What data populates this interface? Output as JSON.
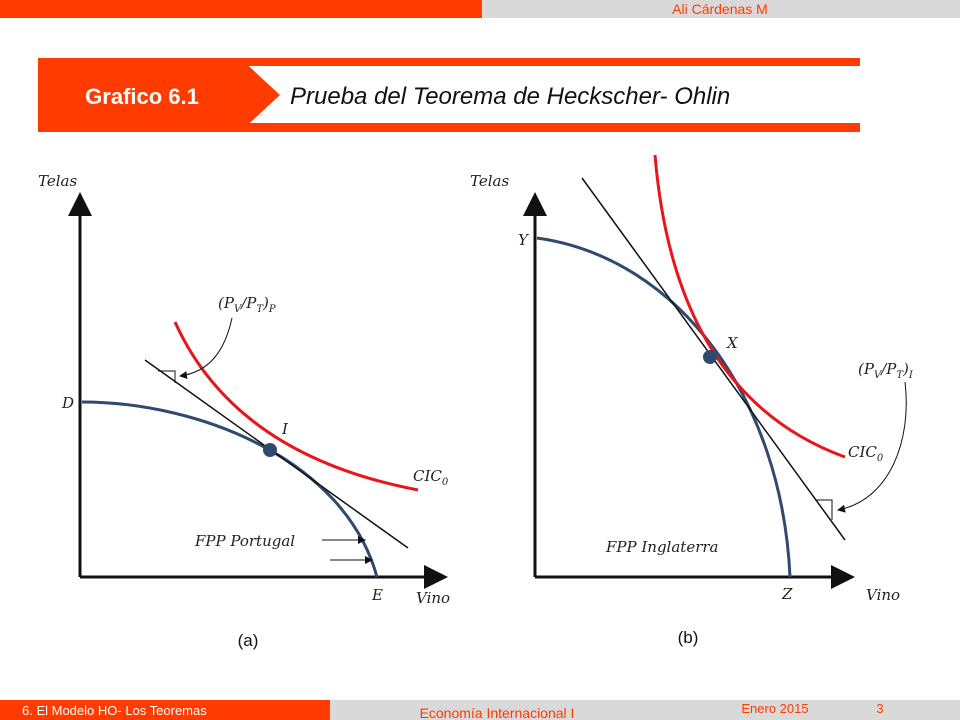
{
  "header": {
    "author": "Ali Cárdenas M",
    "badge": "Grafico 6.1",
    "title": "Prueba del Teorema de Heckscher- Ohlin"
  },
  "panel_a": {
    "y_axis": "Telas",
    "x_axis": "Vino",
    "point_d": "D",
    "point_e": "E",
    "point_i": "I",
    "price_label": [
      "(P",
      "V",
      "/P",
      "T",
      ")",
      "P"
    ],
    "cic_label": [
      "CIC",
      "0"
    ],
    "ppf_label": "FPP Portugal",
    "caption": "(a)"
  },
  "panel_b": {
    "y_axis": "Telas",
    "x_axis": "Vino",
    "point_y": "Y",
    "point_x": "X",
    "point_z": "Z",
    "price_label": [
      "(P",
      "V",
      "/P",
      "T",
      ")",
      "I"
    ],
    "cic_label": [
      "CIC",
      "0"
    ],
    "ppf_label": "FPP Inglaterra",
    "caption": "(b)"
  },
  "footer": {
    "section": "6. El Modelo HO- Los Teoremas",
    "course": "Economía Internacional I",
    "date": "Enero 2015",
    "page": "3"
  }
}
